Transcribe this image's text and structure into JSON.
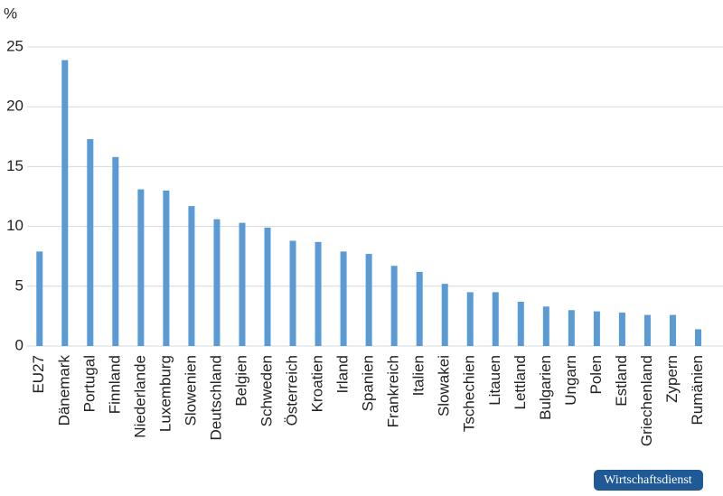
{
  "chart_data": {
    "type": "bar",
    "y_unit": "%",
    "categories": [
      "EU27",
      "Dänemark",
      "Portugal",
      "Finnland",
      "Niederlande",
      "Luxemburg",
      "Slowenien",
      "Deutschland",
      "Belgien",
      "Schweden",
      "Österreich",
      "Kroatien",
      "Irland",
      "Spanien",
      "Frankreich",
      "Italien",
      "Slowakei",
      "Tschechien",
      "Litauen",
      "Lettland",
      "Bulgarien",
      "Ungarn",
      "Polen",
      "Estland",
      "Griechenland",
      "Zypern",
      "Rumänien"
    ],
    "values": [
      7.9,
      23.9,
      17.3,
      15.8,
      13.1,
      13.0,
      11.7,
      10.6,
      10.3,
      9.9,
      8.8,
      8.7,
      7.9,
      7.7,
      6.7,
      6.2,
      5.2,
      4.5,
      4.5,
      3.7,
      3.3,
      3.0,
      2.9,
      2.8,
      2.6,
      2.6,
      1.4
    ],
    "color": "#5a9bd5",
    "ylim": [
      0,
      25
    ],
    "yticks": [
      0,
      5,
      10,
      15,
      20,
      25
    ],
    "grid": true
  },
  "badge": "Wirtschaftsdienst"
}
